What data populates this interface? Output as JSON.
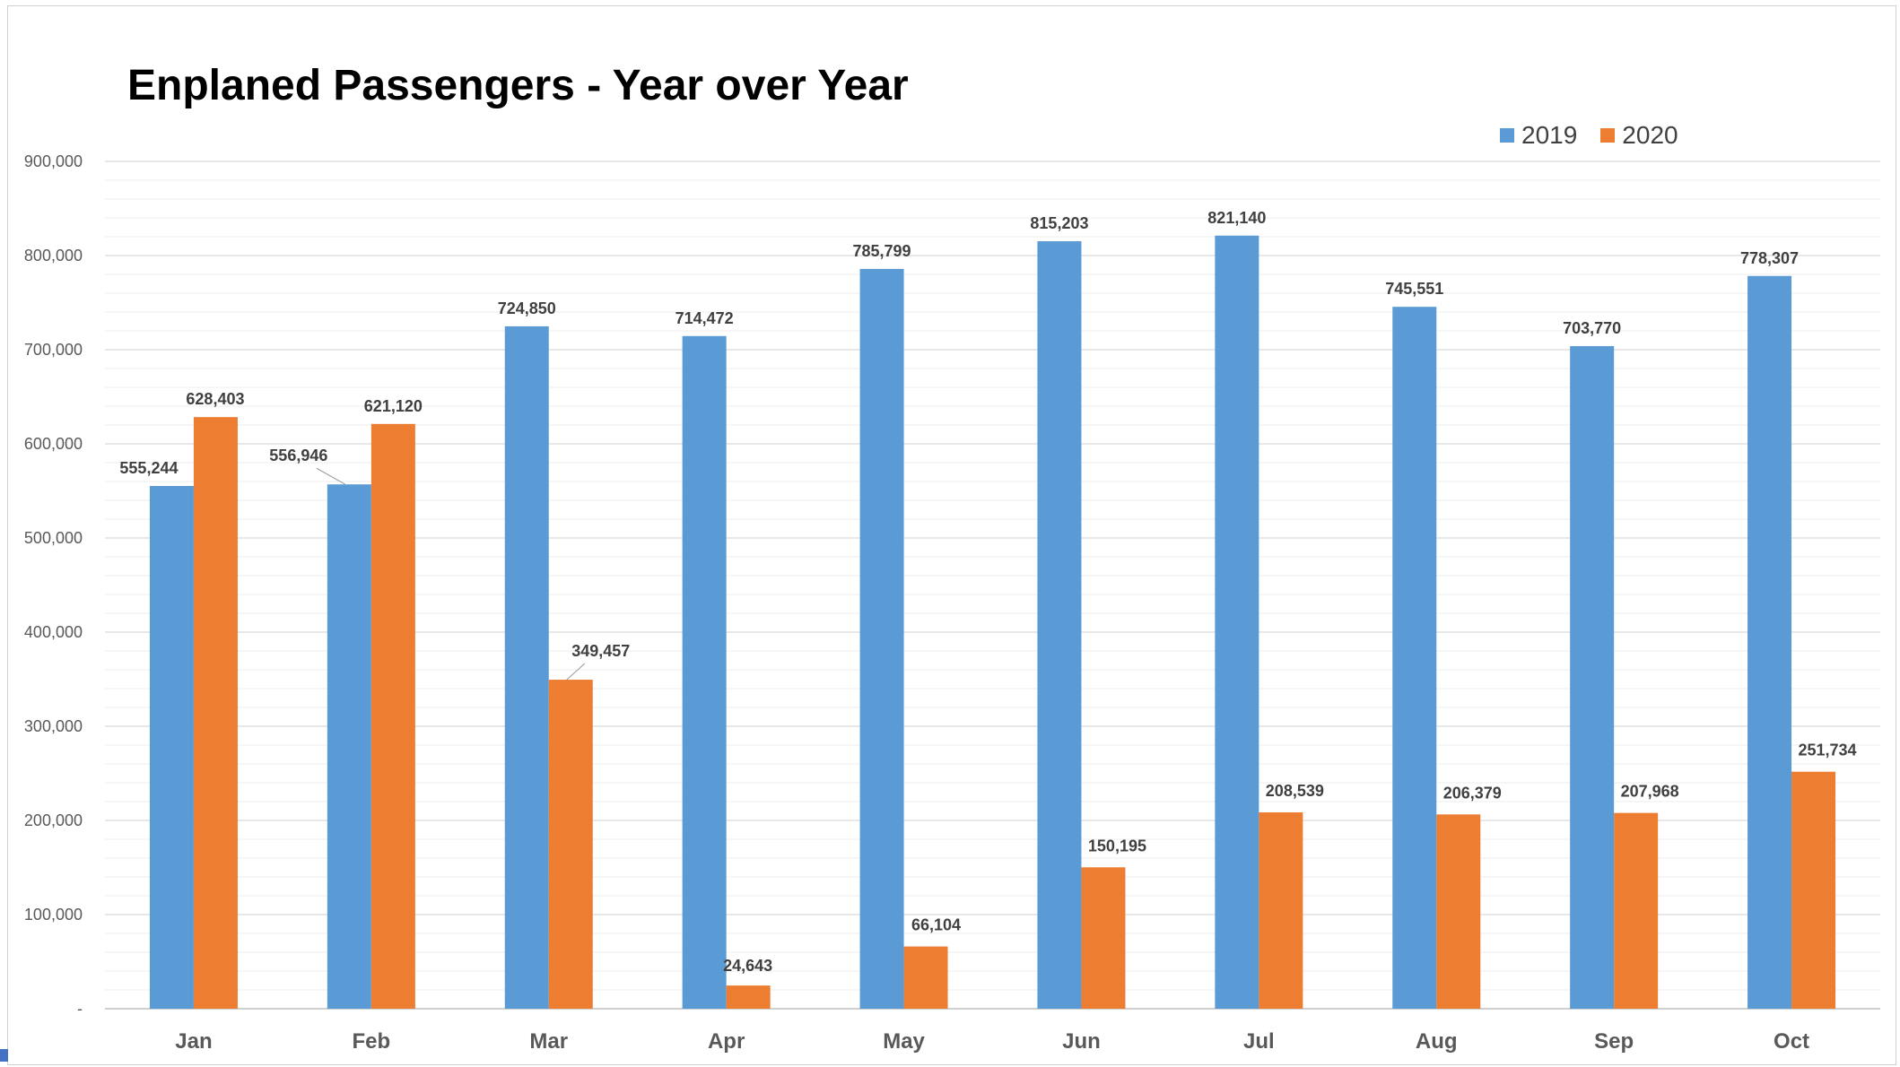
{
  "chart_data": {
    "type": "bar",
    "title": "Enplaned Passengers - Year over Year",
    "categories": [
      "Jan",
      "Feb",
      "Mar",
      "Apr",
      "May",
      "Jun",
      "Jul",
      "Aug",
      "Sep",
      "Oct"
    ],
    "series": [
      {
        "name": "2019",
        "color": "#5b9bd5",
        "values": [
          555244,
          556946,
          724850,
          714472,
          785799,
          815203,
          821140,
          745551,
          703770,
          778307
        ],
        "labels": [
          "555,244",
          "556,946",
          "724,850",
          "714,472",
          "785,799",
          "815,203",
          "821,140",
          "745,551",
          "703,770",
          "778,307"
        ]
      },
      {
        "name": "2020",
        "color": "#ed7d31",
        "values": [
          628403,
          621120,
          349457,
          24643,
          66104,
          150195,
          208539,
          206379,
          207968,
          251734
        ],
        "labels": [
          "628,403",
          "621,120",
          "349,457",
          "24,643",
          "66,104",
          "150,195",
          "208,539",
          "206,379",
          "207,968",
          "251,734"
        ]
      }
    ],
    "ylim": [
      0,
      900000
    ],
    "y_ticks": [
      0,
      100000,
      200000,
      300000,
      400000,
      500000,
      600000,
      700000,
      800000,
      900000
    ],
    "y_tick_labels": [
      "-",
      "100,000",
      "200,000",
      "300,000",
      "400,000",
      "500,000",
      "600,000",
      "700,000",
      "800,000",
      "900,000"
    ],
    "grid": true,
    "legend_position": "top-right",
    "xlabel": "",
    "ylabel": ""
  }
}
